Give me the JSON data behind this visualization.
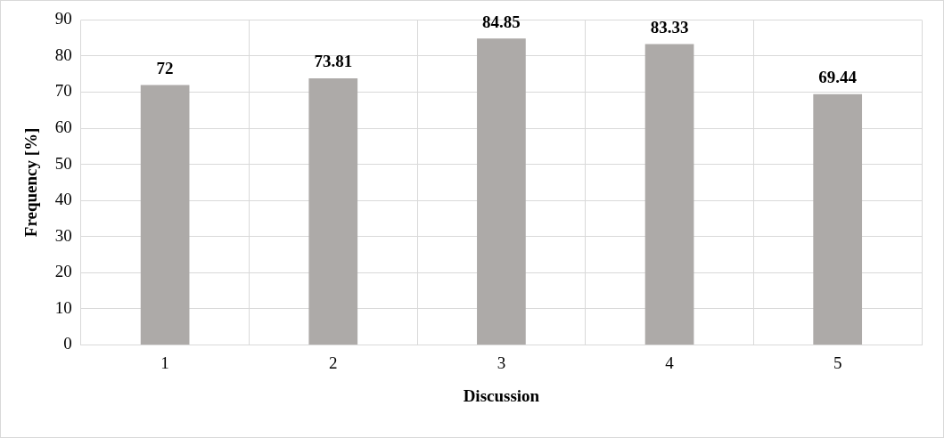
{
  "chart_data": {
    "type": "bar",
    "xlabel": "Discussion",
    "ylabel": "Frequency [%]",
    "categories": [
      "1",
      "2",
      "3",
      "4",
      "5"
    ],
    "values": [
      72,
      73.81,
      84.85,
      83.33,
      69.44
    ],
    "color": "#adaaa8",
    "ylim": [
      0,
      90
    ],
    "yticks": [
      0,
      10,
      20,
      30,
      40,
      50,
      60,
      70,
      80,
      90
    ],
    "grid": true,
    "data_labels": true,
    "legend": false
  }
}
